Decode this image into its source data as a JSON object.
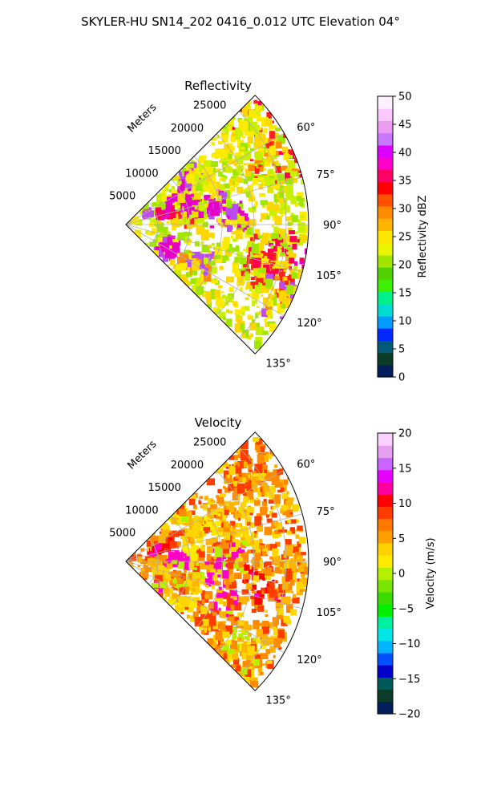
{
  "suptitle": "SKYLER-HU  SN14_202  0416_0.012 UTC Elevation 04°",
  "chart_data": [
    {
      "type": "heatmap",
      "projection": "polar-sector",
      "title": "Reflectivity",
      "radial_label": "Meters",
      "radial_ticks": [
        "5000",
        "10000",
        "15000",
        "20000",
        "25000"
      ],
      "radial_tick_values": [
        5000,
        10000,
        15000,
        20000,
        25000
      ],
      "rmax": 28500,
      "azimuth_ticks": [
        "60°",
        "75°",
        "90°",
        "105°",
        "120°",
        "135°"
      ],
      "azimuth_tick_values": [
        60,
        75,
        90,
        105,
        120,
        135
      ],
      "azimuth_range": [
        45,
        135
      ],
      "grid": true,
      "colorbar": {
        "label": "Reflectivity dBZ",
        "ticks": [
          "0",
          "5",
          "10",
          "15",
          "20",
          "25",
          "30",
          "35",
          "40",
          "45",
          "50"
        ],
        "range": [
          0,
          50
        ],
        "colors": [
          "#001e5a",
          "#0a3c28",
          "#005a78",
          "#0028ff",
          "#009bff",
          "#00dcd2",
          "#00f08c",
          "#3cf000",
          "#50d200",
          "#a0e600",
          "#ebf500",
          "#ffe600",
          "#ffb400",
          "#ff8c00",
          "#ff5000",
          "#ff0000",
          "#ff0064",
          "#ff00c8",
          "#dc00ff",
          "#c878ff",
          "#eb9bf0",
          "#fac8ff",
          "#fff0ff"
        ]
      },
      "echo_colors": [
        "#ffeb00",
        "#c8f000",
        "#a0e600",
        "#ffd700",
        "#ff1e1e",
        "#ff0050",
        "#e600c8",
        "#b94bf0",
        "#ff8c00"
      ]
    },
    {
      "type": "heatmap",
      "projection": "polar-sector",
      "title": "Velocity",
      "radial_label": "Meters",
      "radial_ticks": [
        "5000",
        "10000",
        "15000",
        "20000",
        "25000"
      ],
      "radial_tick_values": [
        5000,
        10000,
        15000,
        20000,
        25000
      ],
      "rmax": 28500,
      "azimuth_ticks": [
        "60°",
        "75°",
        "90°",
        "105°",
        "120°",
        "135°"
      ],
      "azimuth_tick_values": [
        60,
        75,
        90,
        105,
        120,
        135
      ],
      "azimuth_range": [
        45,
        135
      ],
      "grid": true,
      "colorbar": {
        "label": "Velocity (m/s)",
        "ticks": [
          "−20",
          "−15",
          "−10",
          "−5",
          "0",
          "5",
          "10",
          "15",
          "20"
        ],
        "range": [
          -20,
          20
        ],
        "colors": [
          "#001e5a",
          "#0a3c28",
          "#005a5a",
          "#0000c8",
          "#0050ff",
          "#00b4ff",
          "#00e6e6",
          "#00f0a0",
          "#00f000",
          "#3cdc00",
          "#78e600",
          "#b4f000",
          "#ffeb00",
          "#ffd200",
          "#ffa000",
          "#ff7800",
          "#ff3c00",
          "#ff0000",
          "#ff00a0",
          "#e600ff",
          "#c864ff",
          "#e6a0f0",
          "#fad2ff"
        ]
      },
      "echo_colors": [
        "#ffd700",
        "#ffb400",
        "#ff8c00",
        "#ff3c00",
        "#ff0000",
        "#ff00c8",
        "#b4f000",
        "#ffeb00"
      ]
    }
  ]
}
